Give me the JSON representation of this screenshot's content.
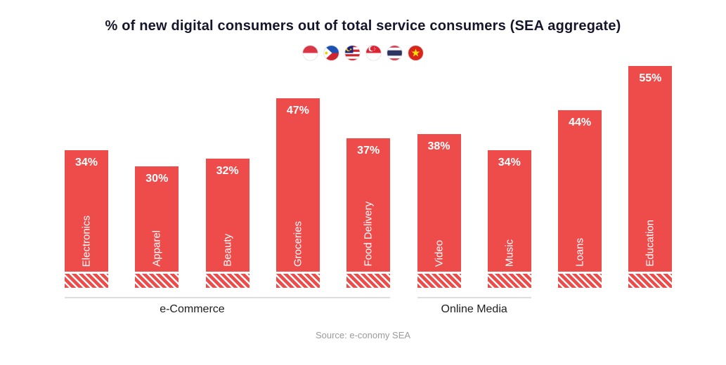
{
  "title": "% of new digital consumers out of total service consumers (SEA aggregate)",
  "source": "Source: e-conomy SEA",
  "flags": [
    "indonesia",
    "philippines",
    "malaysia",
    "singapore",
    "thailand",
    "vietnam"
  ],
  "colors": {
    "bar": "#EE4B4B",
    "title_text": "#15152C",
    "group_line": "#DEDEDE",
    "group_label_text": "#1E1E1E",
    "source_text": "#9B9B9B",
    "bar_label_text": "#FFFFFF"
  },
  "chart_data": {
    "type": "bar",
    "title": "% of new digital consumers out of total service consumers (SEA aggregate)",
    "categories": [
      "Electronics",
      "Apparel",
      "Beauty",
      "Groceries",
      "Food Delivery",
      "Video",
      "Music",
      "Loans",
      "Education"
    ],
    "values": [
      34,
      30,
      32,
      47,
      37,
      38,
      34,
      44,
      55
    ],
    "value_labels": [
      "34%",
      "30%",
      "32%",
      "47%",
      "37%",
      "38%",
      "34%",
      "44%",
      "55%"
    ],
    "ylim": [
      0,
      57
    ],
    "grid": false,
    "legend": "SEA country flags (Indonesia, Philippines, Malaysia, Singapore, Thailand, Vietnam)",
    "groups": [
      {
        "label": "e-Commerce",
        "from": 0,
        "to": 4,
        "label_from": 0,
        "label_to": 3
      },
      {
        "label": "Online Media",
        "from": 5,
        "to": 6,
        "label_from": 5,
        "label_to": 6
      }
    ]
  }
}
